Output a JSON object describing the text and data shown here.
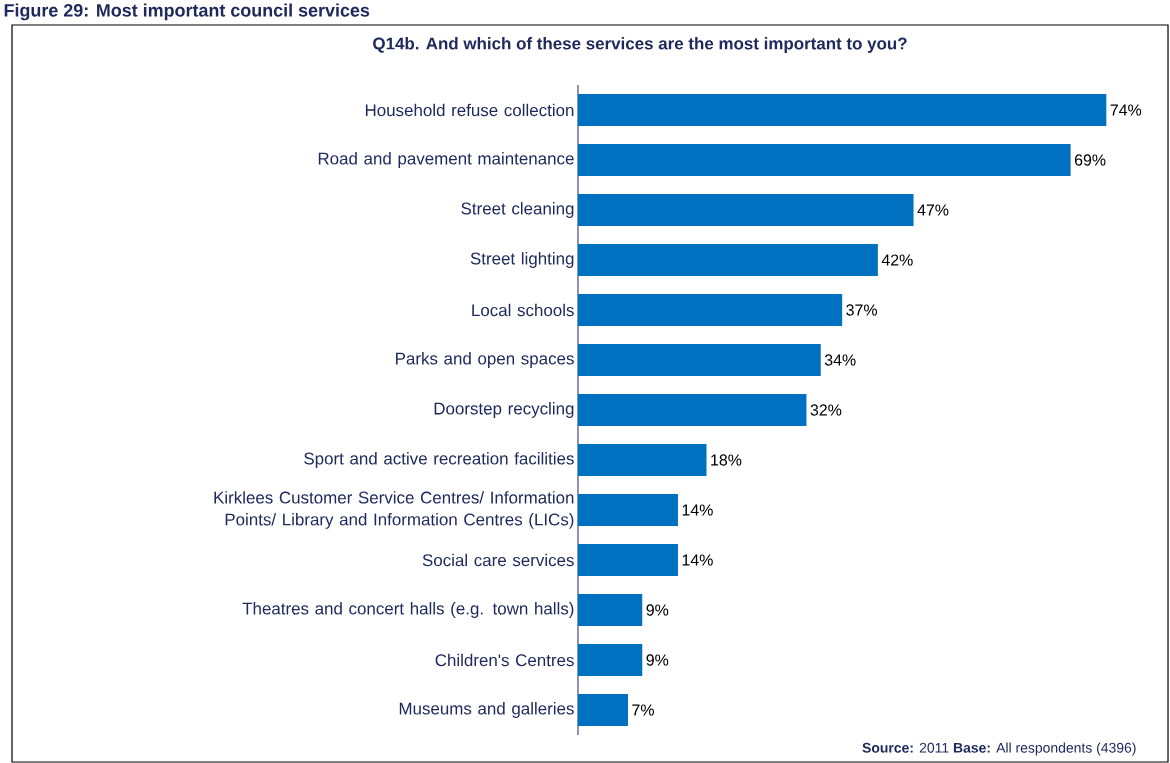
{
  "chart_data": {
    "type": "bar",
    "orientation": "horizontal",
    "title": "Figure 29: Most important council services",
    "subtitle": "Q14b. And which of these services are the most important to you?",
    "categories": [
      "Household refuse collection",
      "Road and pavement maintenance",
      "Street cleaning",
      "Street lighting",
      "Local schools",
      "Parks and open spaces",
      "Doorstep recycling",
      "Sport and active recreation facilities",
      "Kirklees Customer Service Centres/ Information Points/ Library and Information Centres (LICs)",
      "Social care services",
      "Theatres and concert halls (e.g. town halls)",
      "Children's Centres",
      "Museums and galleries"
    ],
    "values": [
      74,
      69,
      47,
      42,
      37,
      34,
      32,
      18,
      14,
      14,
      9,
      9,
      7
    ],
    "value_labels": [
      "74%",
      "69%",
      "47%",
      "42%",
      "37%",
      "34%",
      "32%",
      "18%",
      "14%",
      "14%",
      "9%",
      "9%",
      "7%"
    ],
    "color": "#0070c0",
    "annotations": [
      "**Source:** 2011  **Base:** All respondents (4396)"
    ]
  }
}
